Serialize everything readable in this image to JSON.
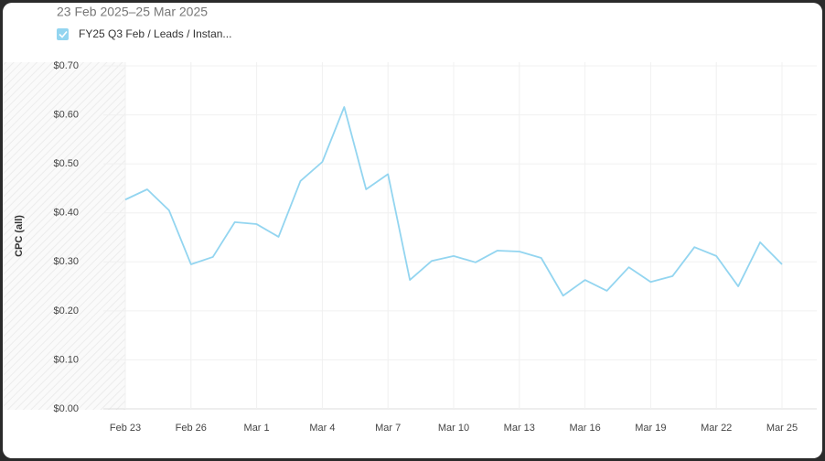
{
  "chart_data": {
    "type": "line",
    "subtitle": "23 Feb 2025–25 Mar 2025",
    "y_label": "CPC (all)",
    "categories": [
      "Feb 23",
      null,
      null,
      "Feb 26",
      null,
      null,
      "Mar 1",
      null,
      null,
      "Mar 4",
      null,
      null,
      "Mar 7",
      null,
      null,
      "Mar 10",
      null,
      null,
      "Mar 13",
      null,
      null,
      "Mar 16",
      null,
      null,
      "Mar 19",
      null,
      null,
      "Mar 22",
      null,
      null,
      "Mar 25"
    ],
    "series": [
      {
        "name": "FY25 Q3 Feb / Leads / Instan...",
        "color": "#93d5f0",
        "values": [
          0.427,
          0.448,
          0.405,
          0.295,
          0.31,
          0.381,
          0.377,
          0.351,
          0.465,
          0.504,
          0.616,
          0.448,
          0.479,
          0.263,
          0.302,
          0.312,
          0.299,
          0.323,
          0.321,
          0.308,
          0.231,
          0.263,
          0.241,
          0.289,
          0.259,
          0.271,
          0.33,
          0.312,
          0.25,
          0.34,
          0.295
        ]
      }
    ],
    "ylim": [
      0,
      0.7
    ],
    "yticks": [
      {
        "value": 0,
        "label": "$0.00"
      },
      {
        "value": 0.1,
        "label": "$0.10"
      },
      {
        "value": 0.2,
        "label": "$0.20"
      },
      {
        "value": 0.3,
        "label": "$0.30"
      },
      {
        "value": 0.4,
        "label": "$0.40"
      },
      {
        "value": 0.5,
        "label": "$0.50"
      },
      {
        "value": 0.6,
        "label": "$0.60"
      },
      {
        "value": 0.7,
        "label": "$0.70"
      }
    ],
    "grid": true
  }
}
